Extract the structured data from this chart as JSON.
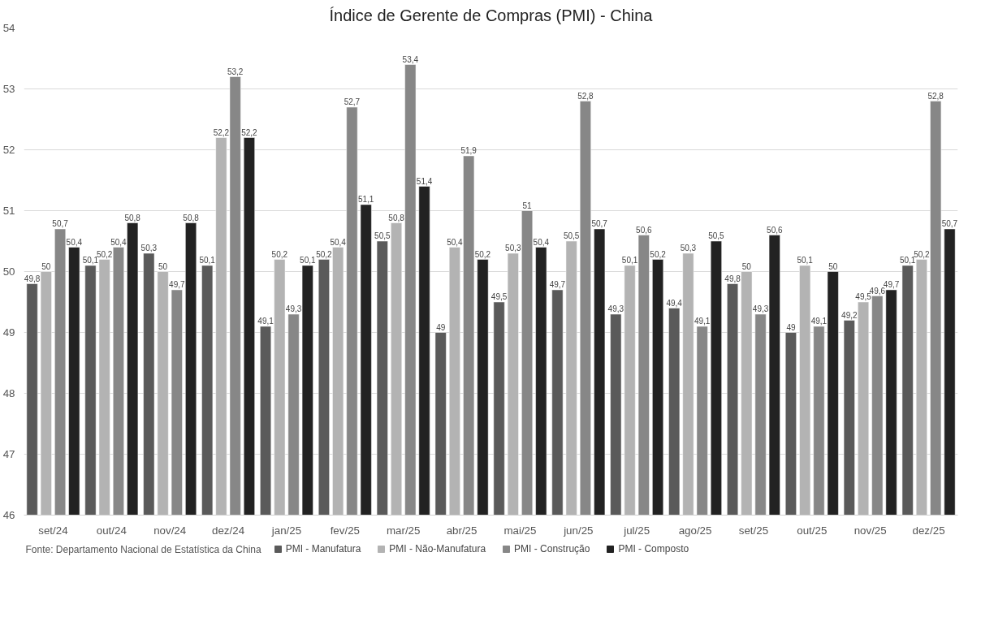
{
  "chart_data": {
    "type": "bar",
    "title": "Índice de Gerente de Compras (PMI) - China",
    "categories": [
      "set/24",
      "out/24",
      "nov/24",
      "dez/24",
      "jan/25",
      "fev/25",
      "mar/25",
      "abr/25",
      "mai/25",
      "jun/25",
      "jul/25",
      "ago/25",
      "set/25",
      "out/25",
      "nov/25",
      "dez/25"
    ],
    "series": [
      {
        "name": "PMI - Manufatura",
        "color": "#5a5a5a",
        "values": [
          49.8,
          50.1,
          50.3,
          50.1,
          49.1,
          50.2,
          50.5,
          49,
          49.5,
          49.7,
          49.3,
          49.4,
          49.8,
          49,
          49.2,
          50.1
        ],
        "value_labels": [
          "49,8",
          "50,1",
          "50,3",
          "50,1",
          "49,1",
          "50,2",
          "50,5",
          "49",
          "49,5",
          "49,7",
          "49,3",
          "49,4",
          "49,8",
          "49",
          "49,2",
          "50,1"
        ]
      },
      {
        "name": "PMI - Não-Manufatura",
        "color": "#b3b3b3",
        "values": [
          50,
          50.2,
          50,
          52.2,
          50.2,
          50.4,
          50.8,
          50.4,
          50.3,
          50.5,
          50.1,
          50.3,
          50,
          50.1,
          49.5,
          50.2
        ],
        "value_labels": [
          "50",
          "50,2",
          "50",
          "52,2",
          "50,2",
          "50,4",
          "50,8",
          "50,4",
          "50,3",
          "50,5",
          "50,1",
          "50,3",
          "50",
          "50,1",
          "49,5",
          "50,2"
        ]
      },
      {
        "name": "PMI - Construção",
        "color": "#878787",
        "values": [
          50.7,
          50.4,
          49.7,
          53.2,
          49.3,
          52.7,
          53.4,
          51.9,
          51,
          52.8,
          50.6,
          49.1,
          49.3,
          49.1,
          49.6,
          52.8
        ],
        "value_labels": [
          "50,7",
          "50,4",
          "49,7",
          "53,2",
          "49,3",
          "52,7",
          "53,4",
          "51,9",
          "51",
          "52,8",
          "50,6",
          "49,1",
          "49,3",
          "49,1",
          "49,6",
          "52,8"
        ]
      },
      {
        "name": "PMI - Composto",
        "color": "#222222",
        "values": [
          50.4,
          50.8,
          50.8,
          52.2,
          50.1,
          51.1,
          51.4,
          50.2,
          50.4,
          50.7,
          50.2,
          50.5,
          50.6,
          50,
          49.7,
          50.7
        ],
        "value_labels": [
          "50,4",
          "50,8",
          "50,8",
          "52,2",
          "50,1",
          "51,1",
          "51,4",
          "50,2",
          "50,4",
          "50,7",
          "50,2",
          "50,5",
          "50,6",
          "50",
          "49,7",
          "50,7"
        ]
      }
    ],
    "ylim": [
      46,
      54
    ],
    "yticks": [
      46,
      47,
      48,
      49,
      50,
      51,
      52,
      53,
      54
    ],
    "grid": "y",
    "legend": "bottom",
    "annotations": [
      "Fonte: Departamento Nacional de Estatística da China"
    ]
  }
}
